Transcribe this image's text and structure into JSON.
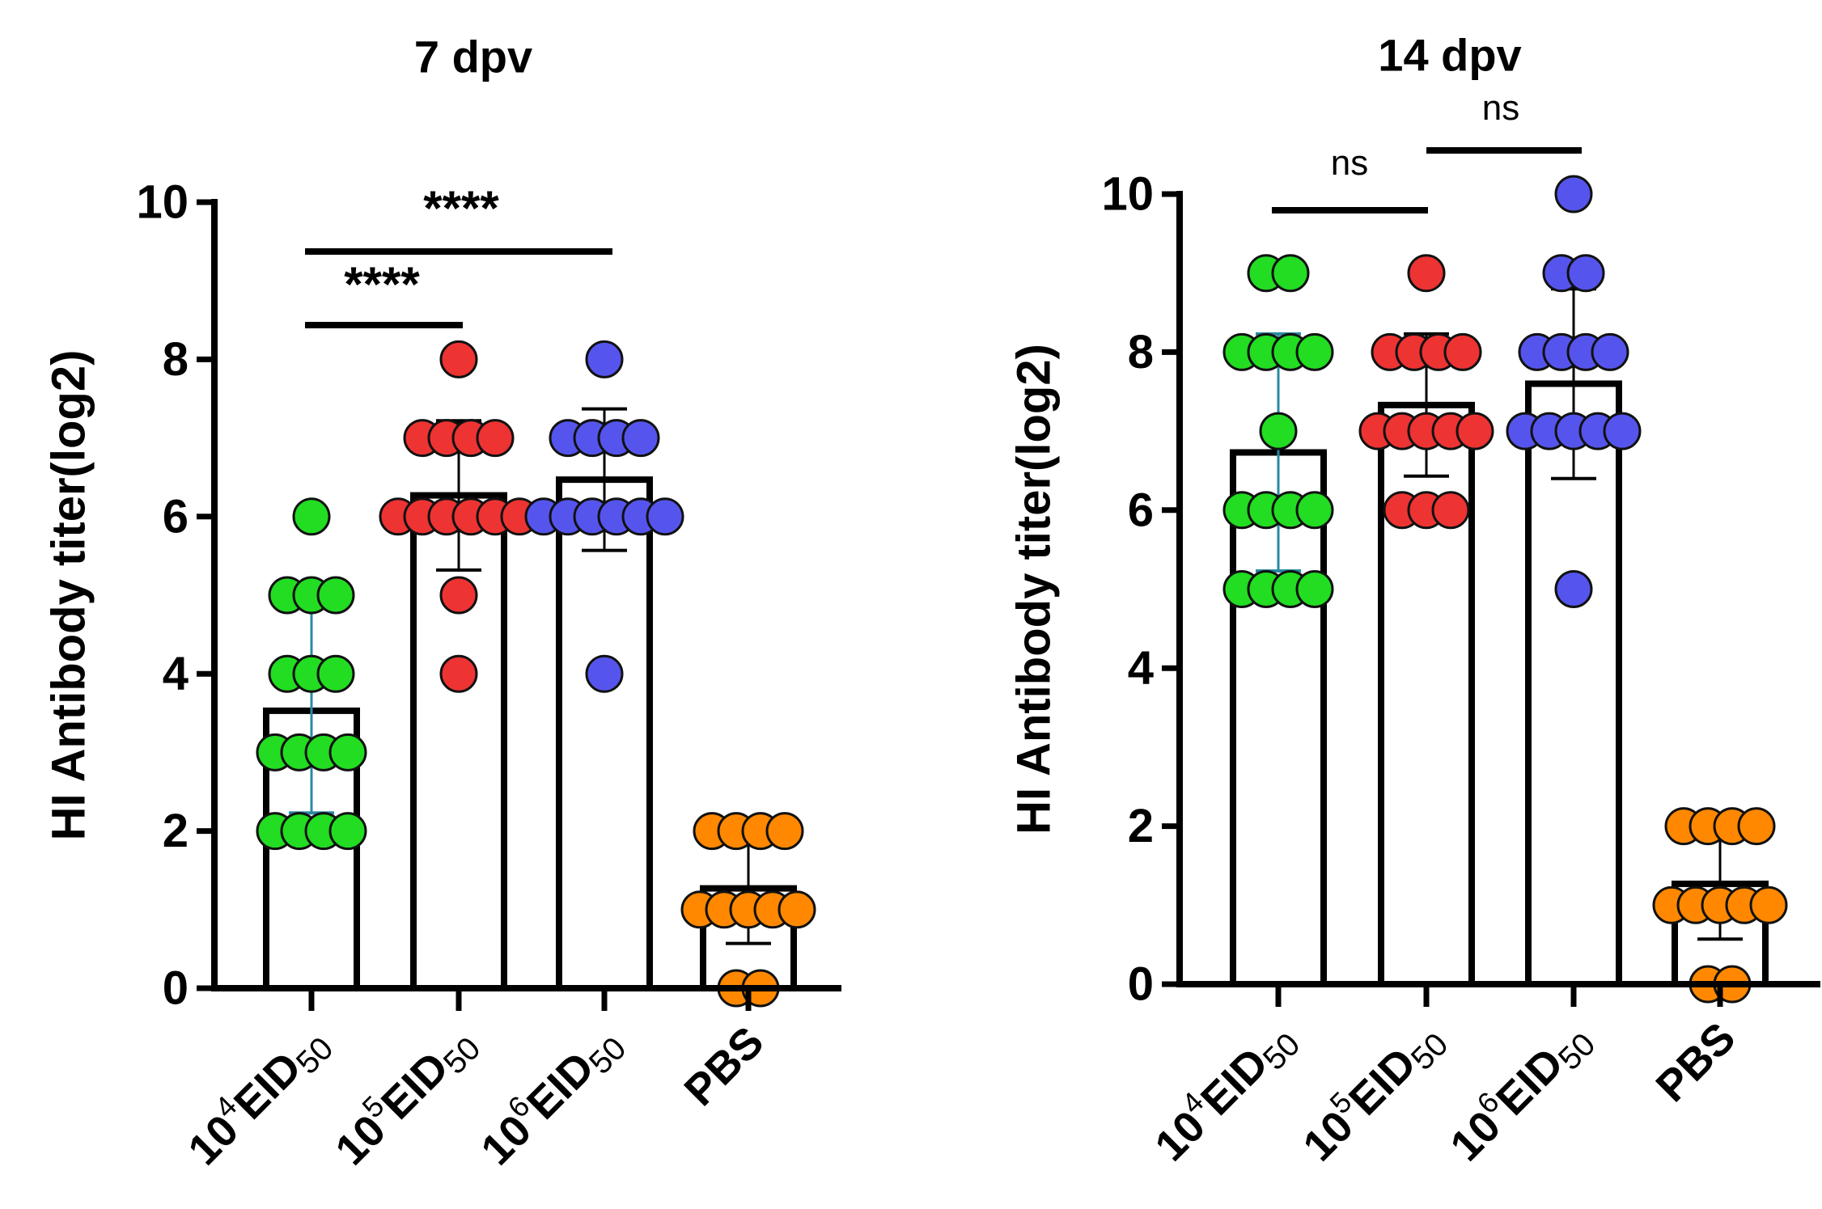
{
  "chart_data": [
    {
      "type": "bar",
      "title": "7 dpv",
      "ylabel": "HI Antibody titer(log2)",
      "xlabel": "",
      "ylim": [
        0,
        10
      ],
      "yticks": [
        0,
        2,
        4,
        6,
        8,
        10
      ],
      "grid": false,
      "legend": "none",
      "categories": [
        {
          "base": "10",
          "sup": "4",
          "main": "EID",
          "sub": "50"
        },
        {
          "base": "10",
          "sup": "5",
          "main": "EID",
          "sub": "50"
        },
        {
          "base": "10",
          "sup": "6",
          "main": "EID",
          "sub": "50"
        },
        {
          "base": "",
          "sup": "",
          "main": "PBS",
          "sub": ""
        }
      ],
      "means": [
        3.53,
        6.27,
        6.47,
        1.27
      ],
      "sd": [
        1.3,
        0.95,
        0.9,
        0.7
      ],
      "colors": [
        "#22dd22",
        "#ee3333",
        "#5555ee",
        "#ff8800"
      ],
      "points": [
        [
          6,
          5,
          5,
          5,
          4,
          4,
          4,
          3,
          3,
          3,
          3,
          2,
          2,
          2,
          2
        ],
        [
          8,
          7,
          7,
          7,
          7,
          6,
          6,
          6,
          6,
          6,
          6,
          5,
          4
        ],
        [
          8,
          7,
          7,
          7,
          7,
          6,
          6,
          6,
          6,
          6,
          6,
          4
        ],
        [
          2,
          2,
          2,
          2,
          1,
          1,
          1,
          1,
          1,
          0,
          0
        ]
      ],
      "significance": [
        {
          "from": 0,
          "to": 1,
          "label": "****"
        },
        {
          "from": 0,
          "to": 2,
          "label": "****"
        }
      ]
    },
    {
      "type": "bar",
      "title": "14 dpv",
      "ylabel": "HI Antibody titer(log2)",
      "xlabel": "",
      "ylim": [
        0,
        10
      ],
      "yticks": [
        0,
        2,
        4,
        6,
        8,
        10
      ],
      "grid": false,
      "legend": "none",
      "categories": [
        {
          "base": "10",
          "sup": "4",
          "main": "EID",
          "sub": "50"
        },
        {
          "base": "10",
          "sup": "5",
          "main": "EID",
          "sub": "50"
        },
        {
          "base": "10",
          "sup": "6",
          "main": "EID",
          "sub": "50"
        },
        {
          "base": "",
          "sup": "",
          "main": "PBS",
          "sub": ""
        }
      ],
      "means": [
        6.73,
        7.33,
        7.6,
        1.27
      ],
      "sd": [
        1.5,
        0.9,
        1.2,
        0.7
      ],
      "colors": [
        "#22dd22",
        "#ee3333",
        "#5555ee",
        "#ff8800"
      ],
      "points": [
        [
          9,
          9,
          8,
          8,
          8,
          8,
          7,
          6,
          6,
          6,
          6,
          5,
          5,
          5,
          5
        ],
        [
          9,
          8,
          8,
          8,
          8,
          7,
          7,
          7,
          7,
          7,
          6,
          6,
          6
        ],
        [
          10,
          9,
          9,
          8,
          8,
          8,
          8,
          7,
          7,
          7,
          7,
          7,
          5
        ],
        [
          2,
          2,
          2,
          2,
          1,
          1,
          1,
          1,
          1,
          0,
          0
        ]
      ],
      "significance": [
        {
          "from": 0,
          "to": 1,
          "label": "ns"
        },
        {
          "from": 1,
          "to": 2,
          "label": "ns"
        }
      ]
    }
  ]
}
